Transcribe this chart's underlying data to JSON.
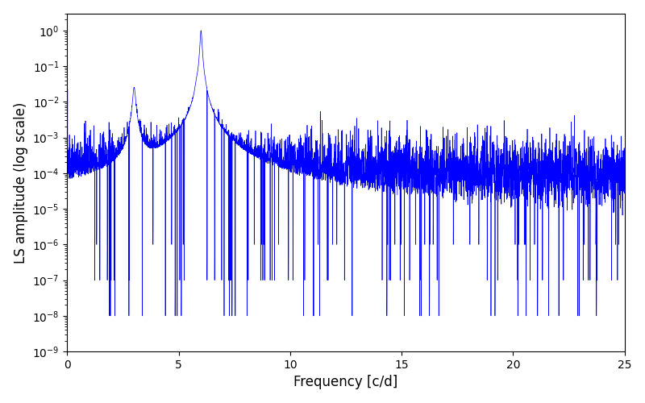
{
  "xlabel": "Frequency [c/d]",
  "ylabel": "LS amplitude (log scale)",
  "xlim": [
    0,
    25
  ],
  "ylim": [
    1e-09,
    3.0
  ],
  "line_color": "#0000ff",
  "line_width": 0.5,
  "background_color": "#ffffff",
  "figsize": [
    8.0,
    5.0
  ],
  "dpi": 100,
  "seed": 137,
  "peak1_freq": 3.0,
  "peak1_amp": 0.025,
  "peak2_freq": 6.0,
  "peak2_amp": 1.0,
  "noise_floor": 0.0001,
  "noise_sigma": 1.2,
  "n_points": 5000,
  "freq_max": 25.0,
  "xticks": [
    0,
    5,
    10,
    15,
    20,
    25
  ]
}
